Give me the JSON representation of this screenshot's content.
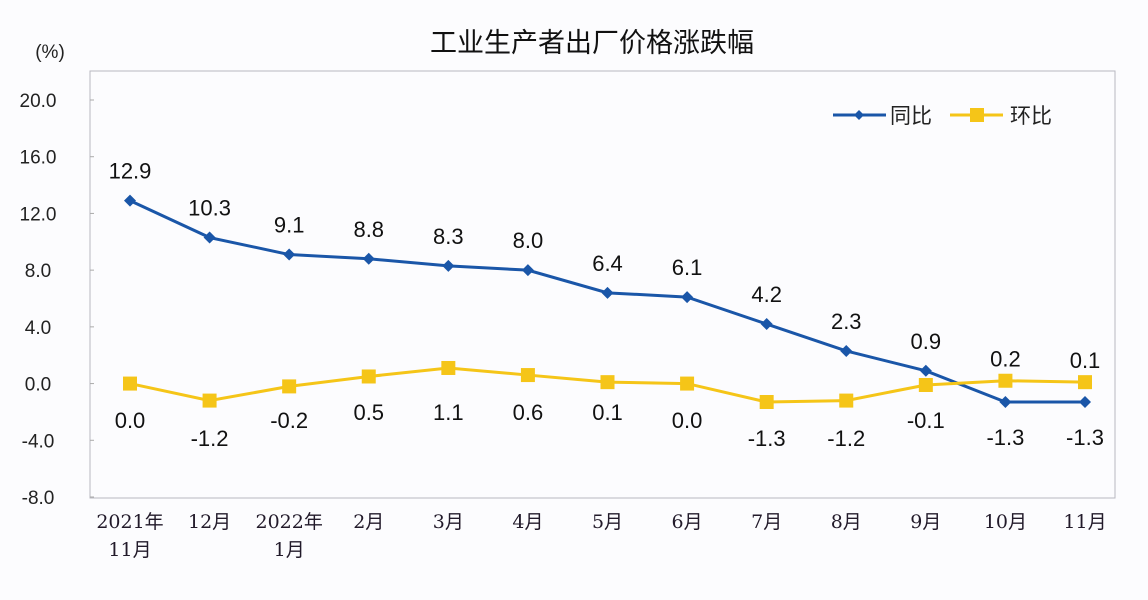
{
  "chart_data": {
    "type": "line",
    "title": "工业生产者出厂价格涨跌幅",
    "ylabel": "(%)",
    "xlabel": "",
    "ylim": [
      -8.0,
      20.0
    ],
    "yticks": [
      "20.0",
      "16.0",
      "12.0",
      "8.0",
      "4.0",
      "0.0",
      "-4.0",
      "-8.0"
    ],
    "ytick_values": [
      20,
      16,
      12,
      8,
      4,
      0,
      -4,
      -8
    ],
    "grid": false,
    "legend_position": "top-right",
    "categories": [
      [
        "2021年",
        "11月"
      ],
      [
        "12月"
      ],
      [
        "2022年",
        "1月"
      ],
      [
        "2月"
      ],
      [
        "3月"
      ],
      [
        "4月"
      ],
      [
        "5月"
      ],
      [
        "6月"
      ],
      [
        "7月"
      ],
      [
        "8月"
      ],
      [
        "9月"
      ],
      [
        "10月"
      ],
      [
        "11月"
      ]
    ],
    "series": [
      {
        "name": "同比",
        "color": "#1a56a8",
        "marker": "diamond",
        "values": [
          12.9,
          10.3,
          9.1,
          8.8,
          8.3,
          8.0,
          6.4,
          6.1,
          4.2,
          2.3,
          0.9,
          -1.3,
          -1.3
        ],
        "labels": [
          "12.9",
          "10.3",
          "9.1",
          "8.8",
          "8.3",
          "8.0",
          "6.4",
          "6.1",
          "4.2",
          "2.3",
          "0.9",
          "-1.3",
          "-1.3"
        ]
      },
      {
        "name": "环比",
        "color": "#f5c518",
        "marker": "square",
        "values": [
          0.0,
          -1.2,
          -0.2,
          0.5,
          1.1,
          0.6,
          0.1,
          0.0,
          -1.3,
          -1.2,
          -0.1,
          0.2,
          0.1
        ],
        "labels": [
          "0.0",
          "-1.2",
          "-0.2",
          "0.5",
          "1.1",
          "0.6",
          "0.1",
          "0.0",
          "-1.3",
          "-1.2",
          "-0.1",
          "0.2",
          "0.1"
        ]
      }
    ]
  }
}
